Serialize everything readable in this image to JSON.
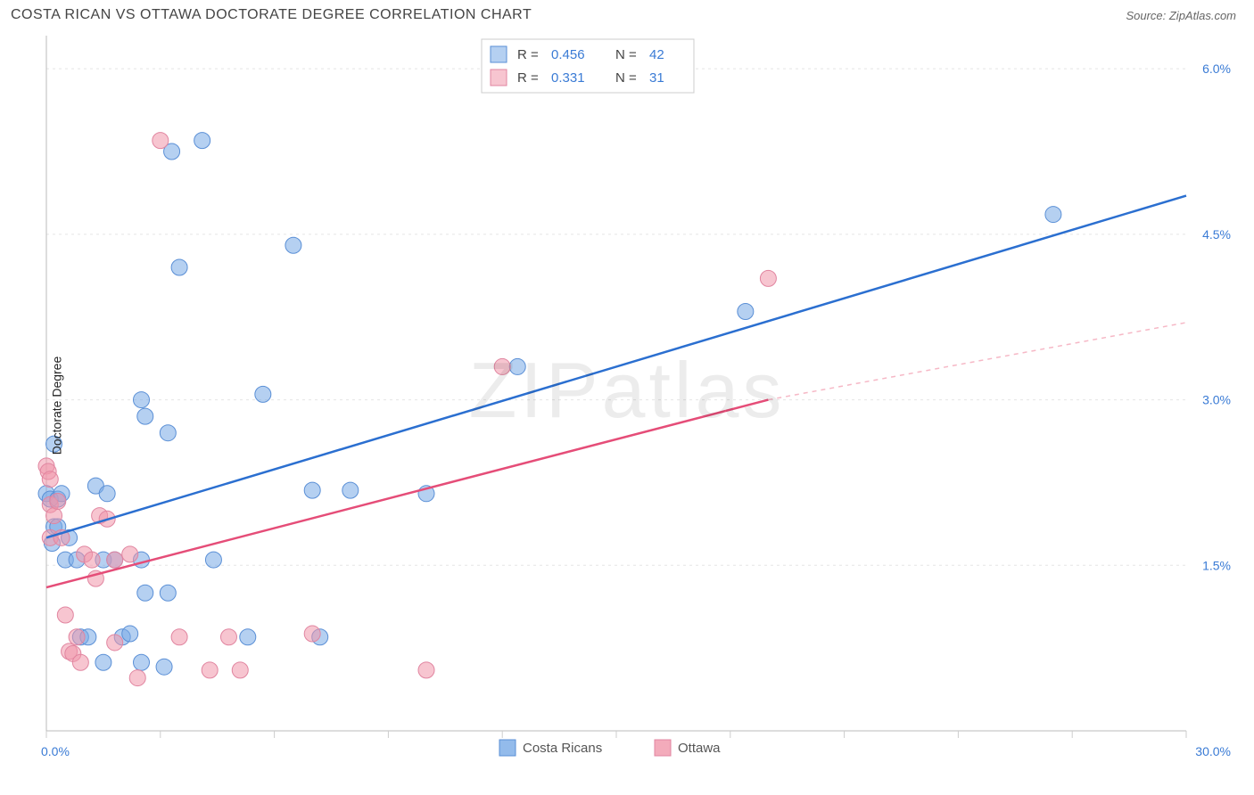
{
  "header": {
    "title": "COSTA RICAN VS OTTAWA DOCTORATE DEGREE CORRELATION CHART",
    "source": "Source: ZipAtlas.com"
  },
  "watermark": "ZIPatlas",
  "chart": {
    "type": "scatter",
    "ylabel": "Doctorate Degree",
    "xlim": [
      0,
      30
    ],
    "ylim": [
      0,
      6.3
    ],
    "x_axis_labels": [
      "0.0%",
      "30.0%"
    ],
    "y_grid": {
      "values": [
        1.5,
        3.0,
        4.5,
        6.0
      ],
      "labels": [
        "1.5%",
        "3.0%",
        "4.5%",
        "6.0%"
      ]
    },
    "x_ticks": [
      0,
      3,
      6,
      9,
      12,
      15,
      18,
      21,
      24,
      27,
      30
    ],
    "axis_color": "#bbbbbb",
    "grid_color": "#e5e5e5",
    "tick_color": "#cccccc",
    "axis_label_color": "#3a7bd5",
    "series": [
      {
        "name": "Costa Ricans",
        "color_fill": "rgba(120,170,230,0.55)",
        "color_stroke": "#5a8fd6",
        "line_color": "#2b6fd0",
        "dash_color": "#2b6fd0",
        "marker_r": 9,
        "R": "0.456",
        "N": "42",
        "trend": {
          "x1": 0,
          "y1": 1.75,
          "x2": 30,
          "y2": 4.85
        },
        "dashed": null,
        "points": [
          [
            0.0,
            2.15
          ],
          [
            0.1,
            2.1
          ],
          [
            0.2,
            1.85
          ],
          [
            0.2,
            2.6
          ],
          [
            0.15,
            1.7
          ],
          [
            0.3,
            2.1
          ],
          [
            0.3,
            1.85
          ],
          [
            0.4,
            2.15
          ],
          [
            0.5,
            1.55
          ],
          [
            0.6,
            1.75
          ],
          [
            0.8,
            1.55
          ],
          [
            0.9,
            0.85
          ],
          [
            1.1,
            0.85
          ],
          [
            1.3,
            2.22
          ],
          [
            1.5,
            0.62
          ],
          [
            1.5,
            1.55
          ],
          [
            1.6,
            2.15
          ],
          [
            1.8,
            1.55
          ],
          [
            2.0,
            0.85
          ],
          [
            2.2,
            0.88
          ],
          [
            2.5,
            0.62
          ],
          [
            2.6,
            1.25
          ],
          [
            2.5,
            1.55
          ],
          [
            2.5,
            3.0
          ],
          [
            2.6,
            2.85
          ],
          [
            3.1,
            0.58
          ],
          [
            3.2,
            1.25
          ],
          [
            3.2,
            2.7
          ],
          [
            3.3,
            5.25
          ],
          [
            3.5,
            4.2
          ],
          [
            4.1,
            5.35
          ],
          [
            4.4,
            1.55
          ],
          [
            5.3,
            0.85
          ],
          [
            5.7,
            3.05
          ],
          [
            6.5,
            4.4
          ],
          [
            7.0,
            2.18
          ],
          [
            7.2,
            0.85
          ],
          [
            8.0,
            2.18
          ],
          [
            10.0,
            2.15
          ],
          [
            12.4,
            3.3
          ],
          [
            18.4,
            3.8
          ],
          [
            26.5,
            4.68
          ]
        ]
      },
      {
        "name": "Ottawa",
        "color_fill": "rgba(240,150,170,0.55)",
        "color_stroke": "#e185a0",
        "line_color": "#e54d78",
        "dash_color": "#f6b8c6",
        "marker_r": 9,
        "R": "0.331",
        "N": "31",
        "trend": {
          "x1": 0,
          "y1": 1.3,
          "x2": 19.0,
          "y2": 3.0
        },
        "dashed": {
          "x1": 19.0,
          "y1": 3.0,
          "x2": 30,
          "y2": 3.7
        },
        "points": [
          [
            0.0,
            2.4
          ],
          [
            0.05,
            2.35
          ],
          [
            0.1,
            2.28
          ],
          [
            0.1,
            2.05
          ],
          [
            0.1,
            1.75
          ],
          [
            0.2,
            1.95
          ],
          [
            0.3,
            2.08
          ],
          [
            0.4,
            1.75
          ],
          [
            0.5,
            1.05
          ],
          [
            0.6,
            0.72
          ],
          [
            0.7,
            0.7
          ],
          [
            0.8,
            0.85
          ],
          [
            0.9,
            0.62
          ],
          [
            1.0,
            1.6
          ],
          [
            1.2,
            1.55
          ],
          [
            1.3,
            1.38
          ],
          [
            1.4,
            1.95
          ],
          [
            1.6,
            1.92
          ],
          [
            1.8,
            1.55
          ],
          [
            1.8,
            0.8
          ],
          [
            2.2,
            1.6
          ],
          [
            2.4,
            0.48
          ],
          [
            3.0,
            5.35
          ],
          [
            3.5,
            0.85
          ],
          [
            4.3,
            0.55
          ],
          [
            4.8,
            0.85
          ],
          [
            5.1,
            0.55
          ],
          [
            7.0,
            0.88
          ],
          [
            10.0,
            0.55
          ],
          [
            12.0,
            3.3
          ],
          [
            19.0,
            4.1
          ]
        ]
      }
    ],
    "stats_box": {
      "bg": "#ffffff",
      "border": "#cccccc",
      "label_color": "#444444",
      "value_color": "#3a7bd5"
    },
    "legend": {
      "items": [
        {
          "label": "Costa Ricans",
          "fill": "rgba(120,170,230,0.8)",
          "stroke": "#5a8fd6"
        },
        {
          "label": "Ottawa",
          "fill": "rgba(240,150,170,0.8)",
          "stroke": "#e185a0"
        }
      ],
      "text_color": "#555555"
    }
  }
}
